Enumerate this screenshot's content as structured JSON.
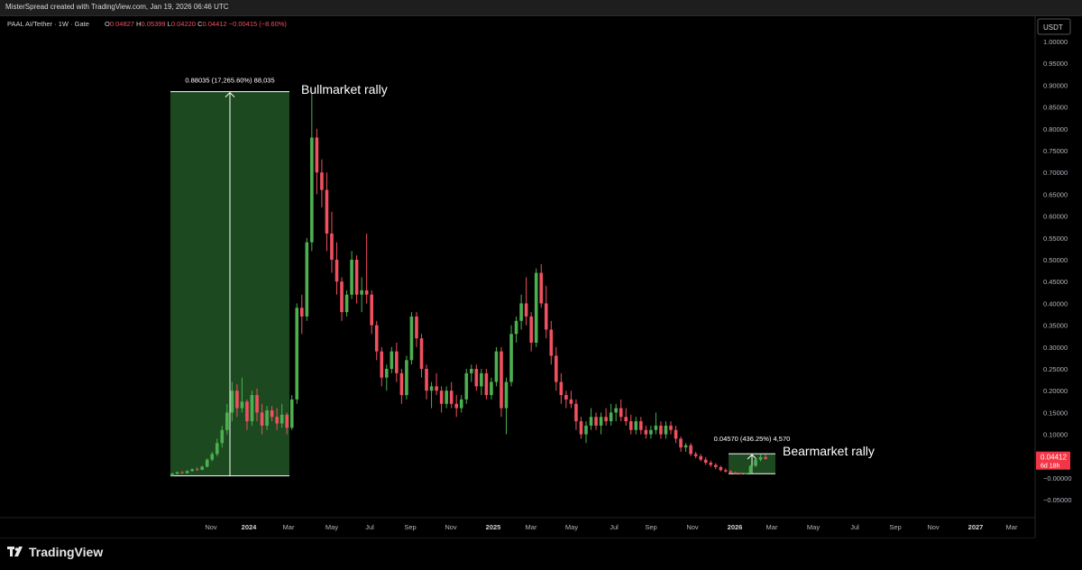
{
  "header": {
    "text": "MisterSpread created with TradingView.com, Jan 19, 2026 06:46 UTC"
  },
  "legend": {
    "symbol": "PAAL AI/Tether · 1W · Gate",
    "ohlc": [
      {
        "label": "O",
        "value": "0.04827"
      },
      {
        "label": "H",
        "value": "0.05399"
      },
      {
        "label": "L",
        "value": "0.04220"
      },
      {
        "label": "C",
        "value": "0.04412"
      }
    ],
    "change": "−0.00415 (−8.60%)"
  },
  "axis": {
    "currency": "USDT",
    "price_labels": [
      "1.00000",
      "0.95000",
      "0.90000",
      "0.85000",
      "0.80000",
      "0.75000",
      "0.70000",
      "0.65000",
      "0.60000",
      "0.55000",
      "0.50000",
      "0.45000",
      "0.40000",
      "0.35000",
      "0.30000",
      "0.25000",
      "0.20000",
      "0.15000",
      "0.10000",
      "0.05000",
      "−0.00000",
      "−0.05000"
    ],
    "price_values": [
      1.0,
      0.95,
      0.9,
      0.85,
      0.8,
      0.75,
      0.7,
      0.65,
      0.6,
      0.55,
      0.5,
      0.45,
      0.4,
      0.35,
      0.3,
      0.25,
      0.2,
      0.15,
      0.1,
      0.05,
      0.0,
      -0.05
    ],
    "time_labels": [
      {
        "label": "Nov",
        "bold": false
      },
      {
        "label": "2024",
        "bold": true
      },
      {
        "label": "Mar",
        "bold": false
      },
      {
        "label": "May",
        "bold": false
      },
      {
        "label": "Jul",
        "bold": false
      },
      {
        "label": "Sep",
        "bold": false
      },
      {
        "label": "Nov",
        "bold": false
      },
      {
        "label": "2025",
        "bold": true
      },
      {
        "label": "Mar",
        "bold": false
      },
      {
        "label": "May",
        "bold": false
      },
      {
        "label": "Jul",
        "bold": false
      },
      {
        "label": "Sep",
        "bold": false
      },
      {
        "label": "Nov",
        "bold": false
      },
      {
        "label": "2026",
        "bold": true
      },
      {
        "label": "Mar",
        "bold": false
      },
      {
        "label": "May",
        "bold": false
      },
      {
        "label": "Jul",
        "bold": false
      },
      {
        "label": "Sep",
        "bold": false
      },
      {
        "label": "Nov",
        "bold": false
      },
      {
        "label": "2027",
        "bold": true
      },
      {
        "label": "Mar",
        "bold": false
      }
    ],
    "current_price": {
      "value": "0.04412",
      "countdown": "6d 18h"
    }
  },
  "annotations": {
    "bull": {
      "measure": "0.88035 (17,265.60%) 88,035",
      "label": "Bullmarket rally"
    },
    "bear": {
      "measure": "0.04570 (436.25%) 4,570",
      "label": "Bearmarket rally"
    }
  },
  "brand": {
    "name": "TradingView"
  },
  "colors": {
    "up": "#4caf50",
    "down": "#f05060",
    "box": "#1e4d22",
    "background": "#000000"
  },
  "chart_data": {
    "type": "candlestick",
    "interval": "1W",
    "ylim": [
      -0.07,
      1.02
    ],
    "candles": [
      [
        0.005,
        0.012,
        0.004,
        0.01
      ],
      [
        0.01,
        0.015,
        0.008,
        0.013
      ],
      [
        0.013,
        0.016,
        0.01,
        0.011
      ],
      [
        0.011,
        0.018,
        0.01,
        0.016
      ],
      [
        0.016,
        0.022,
        0.014,
        0.02
      ],
      [
        0.02,
        0.025,
        0.017,
        0.019
      ],
      [
        0.019,
        0.028,
        0.018,
        0.026
      ],
      [
        0.026,
        0.045,
        0.024,
        0.042
      ],
      [
        0.042,
        0.06,
        0.038,
        0.055
      ],
      [
        0.055,
        0.09,
        0.05,
        0.08
      ],
      [
        0.08,
        0.12,
        0.07,
        0.11
      ],
      [
        0.11,
        0.17,
        0.1,
        0.15
      ],
      [
        0.15,
        0.22,
        0.13,
        0.2
      ],
      [
        0.2,
        0.215,
        0.14,
        0.16
      ],
      [
        0.16,
        0.23,
        0.15,
        0.175
      ],
      [
        0.175,
        0.18,
        0.11,
        0.13
      ],
      [
        0.13,
        0.2,
        0.12,
        0.19
      ],
      [
        0.19,
        0.205,
        0.13,
        0.15
      ],
      [
        0.15,
        0.17,
        0.1,
        0.12
      ],
      [
        0.12,
        0.165,
        0.11,
        0.155
      ],
      [
        0.155,
        0.165,
        0.13,
        0.14
      ],
      [
        0.14,
        0.16,
        0.11,
        0.125
      ],
      [
        0.125,
        0.17,
        0.115,
        0.145
      ],
      [
        0.145,
        0.15,
        0.1,
        0.115
      ],
      [
        0.115,
        0.19,
        0.11,
        0.18
      ],
      [
        0.18,
        0.4,
        0.17,
        0.39
      ],
      [
        0.39,
        0.42,
        0.33,
        0.37
      ],
      [
        0.37,
        0.55,
        0.36,
        0.54
      ],
      [
        0.54,
        0.88,
        0.52,
        0.78
      ],
      [
        0.78,
        0.8,
        0.65,
        0.7
      ],
      [
        0.7,
        0.73,
        0.62,
        0.66
      ],
      [
        0.66,
        0.7,
        0.52,
        0.56
      ],
      [
        0.56,
        0.61,
        0.47,
        0.5
      ],
      [
        0.5,
        0.54,
        0.42,
        0.45
      ],
      [
        0.45,
        0.46,
        0.36,
        0.38
      ],
      [
        0.38,
        0.43,
        0.37,
        0.42
      ],
      [
        0.42,
        0.52,
        0.41,
        0.5
      ],
      [
        0.5,
        0.51,
        0.4,
        0.42
      ],
      [
        0.42,
        0.46,
        0.38,
        0.43
      ],
      [
        0.43,
        0.56,
        0.4,
        0.42
      ],
      [
        0.42,
        0.43,
        0.33,
        0.35
      ],
      [
        0.35,
        0.36,
        0.27,
        0.29
      ],
      [
        0.29,
        0.3,
        0.21,
        0.23
      ],
      [
        0.23,
        0.26,
        0.2,
        0.25
      ],
      [
        0.25,
        0.3,
        0.24,
        0.29
      ],
      [
        0.29,
        0.31,
        0.22,
        0.24
      ],
      [
        0.24,
        0.25,
        0.17,
        0.19
      ],
      [
        0.19,
        0.28,
        0.18,
        0.27
      ],
      [
        0.27,
        0.38,
        0.26,
        0.37
      ],
      [
        0.37,
        0.38,
        0.3,
        0.32
      ],
      [
        0.32,
        0.33,
        0.23,
        0.25
      ],
      [
        0.25,
        0.26,
        0.18,
        0.2
      ],
      [
        0.2,
        0.22,
        0.16,
        0.21
      ],
      [
        0.21,
        0.24,
        0.19,
        0.2
      ],
      [
        0.2,
        0.21,
        0.15,
        0.17
      ],
      [
        0.17,
        0.21,
        0.16,
        0.2
      ],
      [
        0.2,
        0.22,
        0.16,
        0.17
      ],
      [
        0.17,
        0.19,
        0.14,
        0.16
      ],
      [
        0.16,
        0.19,
        0.15,
        0.18
      ],
      [
        0.18,
        0.25,
        0.17,
        0.24
      ],
      [
        0.24,
        0.26,
        0.22,
        0.25
      ],
      [
        0.25,
        0.26,
        0.2,
        0.21
      ],
      [
        0.21,
        0.25,
        0.19,
        0.24
      ],
      [
        0.24,
        0.25,
        0.18,
        0.19
      ],
      [
        0.19,
        0.23,
        0.18,
        0.22
      ],
      [
        0.22,
        0.3,
        0.21,
        0.29
      ],
      [
        0.29,
        0.3,
        0.14,
        0.16
      ],
      [
        0.16,
        0.23,
        0.1,
        0.22
      ],
      [
        0.22,
        0.35,
        0.21,
        0.33
      ],
      [
        0.33,
        0.37,
        0.31,
        0.36
      ],
      [
        0.36,
        0.42,
        0.34,
        0.4
      ],
      [
        0.4,
        0.46,
        0.35,
        0.37
      ],
      [
        0.37,
        0.38,
        0.29,
        0.31
      ],
      [
        0.31,
        0.48,
        0.3,
        0.47
      ],
      [
        0.47,
        0.49,
        0.39,
        0.4
      ],
      [
        0.4,
        0.44,
        0.32,
        0.34
      ],
      [
        0.34,
        0.36,
        0.26,
        0.28
      ],
      [
        0.28,
        0.3,
        0.2,
        0.22
      ],
      [
        0.22,
        0.24,
        0.17,
        0.19
      ],
      [
        0.19,
        0.2,
        0.16,
        0.18
      ],
      [
        0.18,
        0.2,
        0.16,
        0.17
      ],
      [
        0.17,
        0.18,
        0.11,
        0.13
      ],
      [
        0.13,
        0.14,
        0.09,
        0.1
      ],
      [
        0.1,
        0.13,
        0.08,
        0.12
      ],
      [
        0.12,
        0.16,
        0.11,
        0.14
      ],
      [
        0.14,
        0.15,
        0.11,
        0.12
      ],
      [
        0.12,
        0.15,
        0.1,
        0.14
      ],
      [
        0.14,
        0.16,
        0.12,
        0.13
      ],
      [
        0.13,
        0.17,
        0.12,
        0.15
      ],
      [
        0.15,
        0.17,
        0.13,
        0.16
      ],
      [
        0.16,
        0.18,
        0.13,
        0.14
      ],
      [
        0.14,
        0.16,
        0.12,
        0.13
      ],
      [
        0.13,
        0.145,
        0.1,
        0.11
      ],
      [
        0.11,
        0.14,
        0.1,
        0.13
      ],
      [
        0.13,
        0.14,
        0.1,
        0.11
      ],
      [
        0.11,
        0.12,
        0.09,
        0.1
      ],
      [
        0.1,
        0.12,
        0.09,
        0.11
      ],
      [
        0.11,
        0.15,
        0.1,
        0.12
      ],
      [
        0.12,
        0.13,
        0.09,
        0.1
      ],
      [
        0.1,
        0.13,
        0.09,
        0.12
      ],
      [
        0.12,
        0.13,
        0.1,
        0.11
      ],
      [
        0.11,
        0.12,
        0.08,
        0.09
      ],
      [
        0.09,
        0.095,
        0.06,
        0.07
      ],
      [
        0.07,
        0.08,
        0.06,
        0.075
      ],
      [
        0.075,
        0.08,
        0.05,
        0.055
      ],
      [
        0.055,
        0.06,
        0.045,
        0.05
      ],
      [
        0.05,
        0.055,
        0.038,
        0.042
      ],
      [
        0.042,
        0.048,
        0.03,
        0.035
      ],
      [
        0.035,
        0.04,
        0.025,
        0.03
      ],
      [
        0.03,
        0.034,
        0.02,
        0.025
      ],
      [
        0.025,
        0.028,
        0.015,
        0.018
      ],
      [
        0.018,
        0.022,
        0.012,
        0.015
      ],
      [
        0.015,
        0.018,
        0.01,
        0.012
      ],
      [
        0.012,
        0.015,
        0.009,
        0.011
      ],
      [
        0.011,
        0.013,
        0.008,
        0.01
      ],
      [
        0.01,
        0.012,
        0.009,
        0.011
      ],
      [
        0.011,
        0.03,
        0.01,
        0.028
      ],
      [
        0.028,
        0.045,
        0.025,
        0.042
      ],
      [
        0.042,
        0.054,
        0.038,
        0.048
      ],
      [
        0.048,
        0.054,
        0.042,
        0.044
      ]
    ]
  }
}
